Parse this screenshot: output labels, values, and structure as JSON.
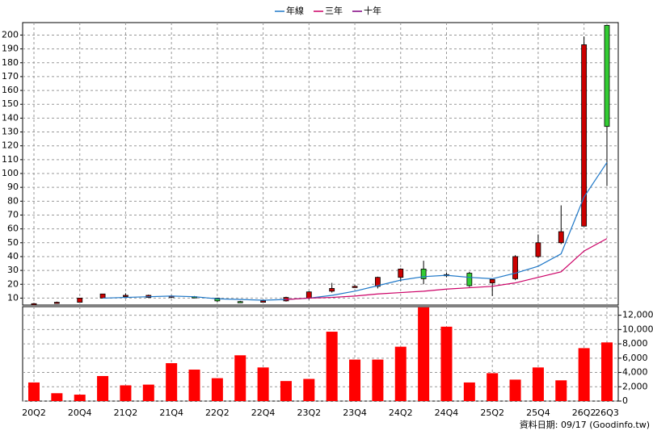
{
  "chart_data": [
    {
      "type": "candlestick",
      "open": [
        5.5,
        6.5,
        7,
        10,
        12,
        10.5,
        11,
        11,
        10,
        7.5,
        7,
        8,
        10,
        15,
        18,
        18.5,
        25,
        31,
        27,
        28,
        21,
        24,
        40,
        50,
        62,
        207
      ],
      "high": [
        6.5,
        7.5,
        10,
        13,
        13.5,
        12.5,
        12,
        11.5,
        10,
        8,
        8.5,
        11,
        15,
        21,
        19.5,
        25.5,
        31.5,
        37,
        28.5,
        29,
        24,
        41,
        56,
        77,
        199,
        207
      ],
      "low": [
        5,
        6,
        7,
        10,
        11,
        10,
        10,
        10,
        7,
        7,
        7,
        7.5,
        9,
        14,
        17.5,
        17,
        22,
        20,
        25,
        18,
        11.5,
        23,
        39,
        49,
        62,
        91
      ],
      "close": [
        6,
        7,
        10,
        13,
        12,
        12,
        11.5,
        10.5,
        8,
        7,
        8,
        10.5,
        14.5,
        17,
        18.5,
        25,
        31,
        24,
        27,
        19,
        23.5,
        40,
        50,
        58,
        193,
        134
      ],
      "up_color": "#cc0000",
      "down_color": "#33cc33",
      "lines": [
        {
          "name": "年線",
          "color": "#1f78c8",
          "values": [
            null,
            null,
            null,
            10,
            10.5,
            11,
            11.5,
            11,
            9.5,
            9,
            8.5,
            9,
            10,
            12,
            15,
            19,
            23,
            25.5,
            26.5,
            25,
            24,
            28,
            33,
            42,
            83,
            108
          ]
        },
        {
          "name": "三年",
          "color": "#cc0066",
          "values": [
            null,
            null,
            null,
            null,
            null,
            null,
            null,
            null,
            null,
            null,
            null,
            9,
            10,
            10.5,
            11.5,
            13,
            14,
            15,
            16.5,
            17.5,
            18.5,
            21,
            25,
            29,
            44,
            53
          ]
        },
        {
          "name": "十年",
          "color": "#800080",
          "values": [
            null,
            null,
            null,
            null,
            null,
            null,
            null,
            null,
            null,
            null,
            null,
            null,
            null,
            null,
            null,
            null,
            null,
            null,
            null,
            null,
            null,
            null,
            null,
            null,
            null,
            null
          ]
        }
      ],
      "ylim": [
        5,
        209
      ],
      "yticks": [
        10,
        20,
        30,
        40,
        50,
        60,
        70,
        80,
        90,
        100,
        110,
        120,
        130,
        140,
        150,
        160,
        170,
        180,
        190,
        200
      ],
      "grid": true
    },
    {
      "type": "bar",
      "categories": [
        "20Q2",
        null,
        "20Q4",
        null,
        "21Q2",
        null,
        "21Q4",
        null,
        "22Q2",
        null,
        "22Q4",
        null,
        "23Q2",
        null,
        "23Q4",
        null,
        "24Q2",
        null,
        "24Q4",
        null,
        "25Q2",
        null,
        "25Q4",
        null,
        "26Q2",
        "26Q3"
      ],
      "values": [
        2600,
        1100,
        900,
        3500,
        2200,
        2300,
        5300,
        4400,
        3200,
        6400,
        4700,
        2800,
        3100,
        9700,
        5800,
        5800,
        7600,
        13100,
        10400,
        2600,
        3900,
        3000,
        4700,
        2900,
        7400,
        8200
      ],
      "color": "#ff0000",
      "ylim": [
        0,
        13200
      ],
      "yticks": [
        0,
        {
          "value": 2000,
          "label": "2,000"
        },
        {
          "value": 4000,
          "label": "4,000"
        },
        {
          "value": 6000,
          "label": "6,000"
        },
        {
          "value": 8000,
          "label": "8,000"
        },
        {
          "value": 10000,
          "label": "10,000"
        },
        {
          "value": 12000,
          "label": "12,000"
        }
      ],
      "grid": true
    }
  ],
  "footer": "資料日期: 09/17 (Goodinfo.tw)"
}
